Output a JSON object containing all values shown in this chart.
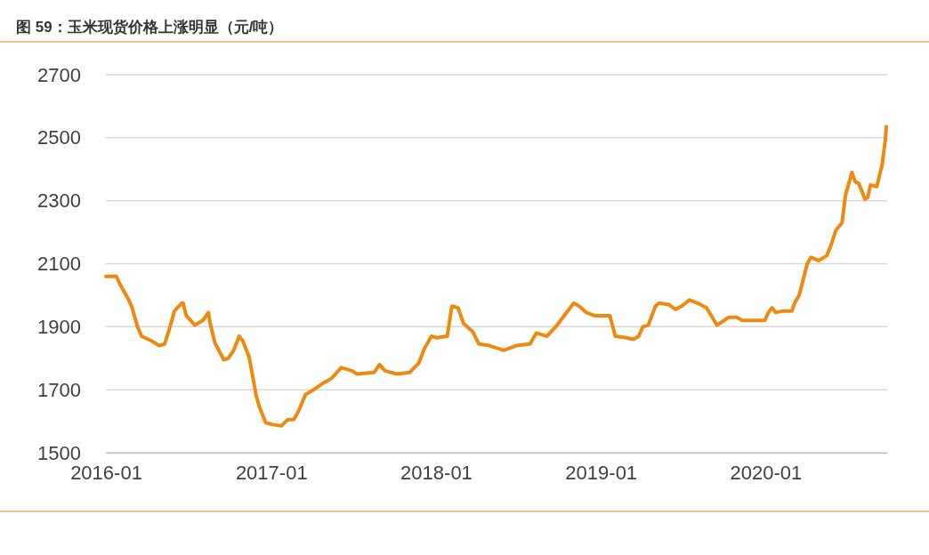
{
  "chart_data": {
    "type": "line",
    "title": "图 59：玉米现货价格上涨明显（元/吨）",
    "xlim": [
      "2016-01-01",
      "2020-09-26"
    ],
    "xticks": [
      {
        "value": "2016-01-01",
        "label": "2016-01"
      },
      {
        "value": "2017-01-01",
        "label": "2017-01"
      },
      {
        "value": "2018-01-01",
        "label": "2018-01"
      },
      {
        "value": "2019-01-01",
        "label": "2019-01"
      },
      {
        "value": "2020-01-01",
        "label": "2020-01"
      }
    ],
    "ylim": [
      1500,
      2700
    ],
    "yticks": [
      1500,
      1700,
      1900,
      2100,
      2300,
      2500,
      2700
    ],
    "grid": "y",
    "marker": "none",
    "line_style": "solid",
    "series": [
      {
        "color": "#f0890f",
        "x": [
          "2016-01-01",
          "2016-01-24",
          "2016-02-01",
          "2016-02-17",
          "2016-02-27",
          "2016-03-11",
          "2016-03-20",
          "2016-04-11",
          "2016-04-28",
          "2016-05-10",
          "2016-05-20",
          "2016-06-01",
          "2016-06-17",
          "2016-06-20",
          "2016-06-27",
          "2016-07-16",
          "2016-08-03",
          "2016-08-15",
          "2016-08-19",
          "2016-08-29",
          "2016-09-18",
          "2016-09-28",
          "2016-10-10",
          "2016-10-22",
          "2016-10-30",
          "2016-11-13",
          "2016-11-29",
          "2016-12-06",
          "2016-12-20",
          "2017-01-03",
          "2017-01-23",
          "2017-02-07",
          "2017-02-20",
          "2017-03-02",
          "2017-03-18",
          "2017-04-05",
          "2017-04-25",
          "2017-05-14",
          "2017-06-05",
          "2017-06-29",
          "2017-07-09",
          "2017-08-17",
          "2017-08-29",
          "2017-09-10",
          "2017-10-06",
          "2017-11-04",
          "2017-11-24",
          "2017-12-06",
          "2017-12-22",
          "2018-01-03",
          "2018-01-26",
          "2018-02-05",
          "2018-02-19",
          "2018-03-03",
          "2018-03-23",
          "2018-04-06",
          "2018-04-29",
          "2018-05-31",
          "2018-06-28",
          "2018-07-28",
          "2018-08-11",
          "2018-09-04",
          "2018-09-26",
          "2018-11-02",
          "2018-11-14",
          "2018-11-30",
          "2018-12-18",
          "2019-01-21",
          "2019-02-02",
          "2019-02-26",
          "2019-03-14",
          "2019-03-26",
          "2019-04-04",
          "2019-04-16",
          "2019-05-02",
          "2019-05-10",
          "2019-06-01",
          "2019-06-15",
          "2019-06-29",
          "2019-07-16",
          "2019-08-03",
          "2019-08-23",
          "2019-09-15",
          "2019-10-01",
          "2019-10-11",
          "2019-10-29",
          "2019-11-10",
          "2019-12-30",
          "2020-01-07",
          "2020-01-15",
          "2020-01-23",
          "2020-02-08",
          "2020-02-28",
          "2020-03-05",
          "2020-03-15",
          "2020-03-25",
          "2020-04-02",
          "2020-04-10",
          "2020-04-27",
          "2020-05-15",
          "2020-05-25",
          "2020-06-04",
          "2020-06-18",
          "2020-06-26",
          "2020-07-10",
          "2020-07-17",
          "2020-07-25",
          "2020-08-08",
          "2020-08-14",
          "2020-08-20",
          "2020-09-03",
          "2020-09-09",
          "2020-09-15",
          "2020-09-22",
          "2020-09-24"
        ],
        "values": [
          2060,
          2060,
          2035,
          1995,
          1965,
          1900,
          1870,
          1855,
          1840,
          1845,
          1890,
          1950,
          1975,
          1975,
          1935,
          1905,
          1920,
          1945,
          1910,
          1850,
          1795,
          1800,
          1825,
          1870,
          1855,
          1805,
          1680,
          1645,
          1595,
          1590,
          1585,
          1605,
          1605,
          1630,
          1685,
          1700,
          1720,
          1735,
          1770,
          1760,
          1750,
          1755,
          1780,
          1760,
          1750,
          1755,
          1785,
          1830,
          1870,
          1865,
          1870,
          1965,
          1960,
          1910,
          1885,
          1845,
          1840,
          1825,
          1840,
          1845,
          1880,
          1870,
          1905,
          1975,
          1965,
          1945,
          1935,
          1935,
          1870,
          1865,
          1860,
          1870,
          1900,
          1905,
          1965,
          1975,
          1970,
          1955,
          1965,
          1985,
          1975,
          1960,
          1905,
          1920,
          1930,
          1930,
          1920,
          1920,
          1945,
          1960,
          1945,
          1950,
          1950,
          1975,
          2000,
          2055,
          2100,
          2120,
          2110,
          2125,
          2160,
          2205,
          2230,
          2320,
          2390,
          2360,
          2355,
          2305,
          2310,
          2350,
          2345,
          2380,
          2415,
          2495,
          2535
        ]
      }
    ]
  }
}
